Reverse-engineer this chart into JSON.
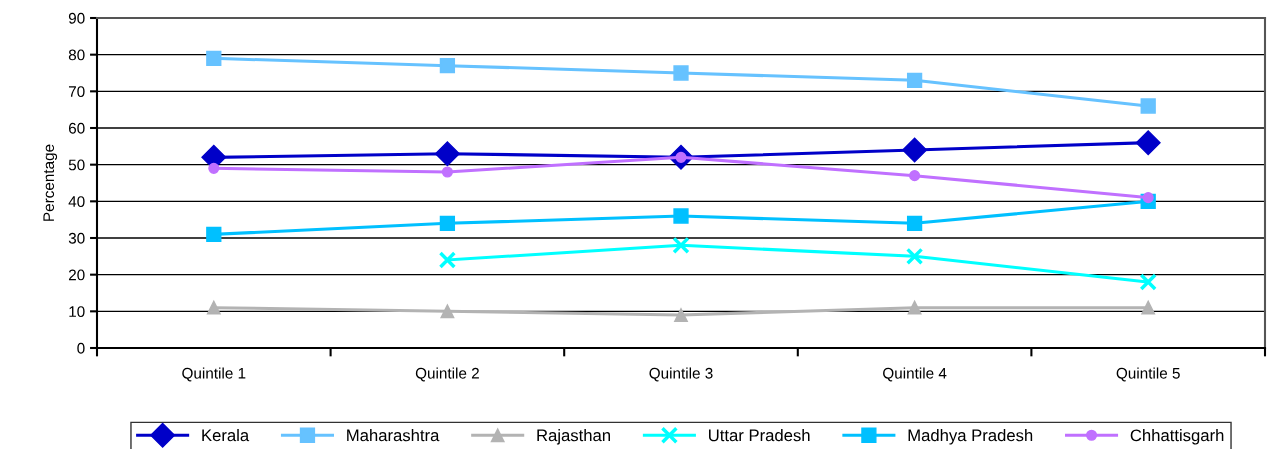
{
  "chart_data": {
    "type": "line",
    "ylabel": "Percentage",
    "categories": [
      "Quintile 1",
      "Quintile 2",
      "Quintile 3",
      "Quintile 4",
      "Quintile 5"
    ],
    "ylim": [
      0,
      90
    ],
    "yticks": [
      0,
      10,
      20,
      30,
      40,
      50,
      60,
      70,
      80,
      90
    ],
    "grid": "y",
    "legend": "bottom",
    "series": [
      {
        "name": "Kerala",
        "color": "#0000c8",
        "marker": "diamond",
        "values": [
          52,
          53,
          52,
          54,
          56
        ]
      },
      {
        "name": "Maharashtra",
        "color": "#66c2ff",
        "marker": "square",
        "values": [
          79,
          77,
          75,
          73,
          66
        ]
      },
      {
        "name": "Rajasthan",
        "color": "#b3b3b3",
        "marker": "triangle",
        "values": [
          11,
          10,
          9,
          11,
          11
        ]
      },
      {
        "name": "Uttar Pradesh",
        "color": "#00ffff",
        "marker": "cross",
        "values": [
          null,
          24,
          28,
          25,
          18
        ]
      },
      {
        "name": "Madhya Pradesh",
        "color": "#00c0ff",
        "marker": "square",
        "values": [
          31,
          34,
          36,
          34,
          40
        ]
      },
      {
        "name": "Chhattisgarh",
        "color": "#c070ff",
        "marker": "circle",
        "values": [
          49,
          48,
          52,
          47,
          41
        ]
      }
    ]
  }
}
